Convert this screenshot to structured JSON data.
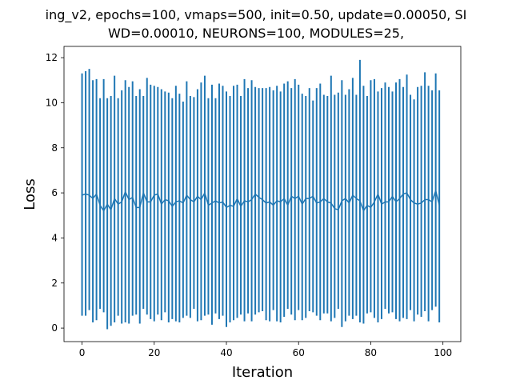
{
  "chart_data": {
    "type": "line",
    "title_lines": [
      "ing_v2, epochs=100, vmaps=500, init=0.50, update=0.00050, SI",
      "WD=0.00010, NEURONS=100, MODULES=25,"
    ],
    "xlabel": "Iteration",
    "ylabel": "Loss",
    "xlim": [
      -5,
      104.95
    ],
    "ylim": [
      -0.6,
      12.5
    ],
    "xticks": [
      0,
      20,
      40,
      60,
      80,
      100
    ],
    "yticks": [
      0,
      2,
      4,
      6,
      8,
      10,
      12
    ],
    "grid": false,
    "color": "#1f77b4",
    "series": [
      {
        "values": [
          5.9,
          5.95,
          5.9,
          5.75,
          5.95,
          5.45,
          5.2,
          5.5,
          5.25,
          5.75,
          5.5,
          5.6,
          6.05,
          5.7,
          5.8,
          5.35,
          5.35,
          6.0,
          5.6,
          5.6,
          5.9,
          5.95,
          5.5,
          5.7,
          5.65,
          5.4,
          5.6,
          5.65,
          5.55,
          5.9,
          5.7,
          5.6,
          5.85,
          5.7,
          6.0,
          5.45,
          5.55,
          5.65,
          5.55,
          5.6,
          5.35,
          5.45,
          5.4,
          5.75,
          5.4,
          5.65,
          5.6,
          5.7,
          5.95,
          5.8,
          5.7,
          5.55,
          5.6,
          5.45,
          5.65,
          5.6,
          5.75,
          5.45,
          5.85,
          5.75,
          5.85,
          5.5,
          5.75,
          5.75,
          5.85,
          5.55,
          5.6,
          5.75,
          5.6,
          5.55,
          5.3,
          5.25,
          5.65,
          5.75,
          5.55,
          5.9,
          5.75,
          5.65,
          5.2,
          5.45,
          5.35,
          5.6,
          5.95,
          5.5,
          5.6,
          5.6,
          5.85,
          5.6,
          5.75,
          5.95,
          6.0,
          5.7,
          5.55,
          5.5,
          5.55,
          5.7,
          5.7,
          5.6,
          6.1,
          5.45
        ],
        "err_low": [
          0.55,
          0.55,
          0.8,
          0.25,
          0.35,
          0.85,
          0.7,
          -0.05,
          0.1,
          0.25,
          0.55,
          0.2,
          0.25,
          0.2,
          0.55,
          0.6,
          0.2,
          0.85,
          0.6,
          0.4,
          0.3,
          0.6,
          0.35,
          0.7,
          0.25,
          0.4,
          0.3,
          0.25,
          0.45,
          0.55,
          0.45,
          0.85,
          0.3,
          0.35,
          0.55,
          0.6,
          0.15,
          0.65,
          0.4,
          0.55,
          0.05,
          0.25,
          0.35,
          0.45,
          0.6,
          0.3,
          0.65,
          0.3,
          0.6,
          0.7,
          0.75,
          0.35,
          0.3,
          0.8,
          0.3,
          0.25,
          0.5,
          0.85,
          0.6,
          0.35,
          0.8,
          0.35,
          0.45,
          0.75,
          0.7,
          0.55,
          0.35,
          0.65,
          0.65,
          0.3,
          0.45,
          0.85,
          0.05,
          0.3,
          0.55,
          0.4,
          0.55,
          0.25,
          0.2,
          0.65,
          0.7,
          0.45,
          0.25,
          0.4,
          0.85,
          0.65,
          0.7,
          0.4,
          0.3,
          0.45,
          0.4,
          0.8,
          0.3,
          0.6,
          0.5,
          0.75,
          0.3,
          0.8,
          0.95,
          0.25
        ],
        "err_high": [
          11.3,
          11.4,
          11.5,
          11.0,
          11.05,
          10.2,
          11.05,
          10.2,
          10.3,
          11.2,
          10.2,
          10.55,
          11.0,
          10.7,
          10.95,
          10.3,
          10.6,
          10.3,
          11.1,
          10.8,
          10.75,
          10.7,
          10.6,
          10.5,
          10.45,
          10.2,
          10.75,
          10.4,
          10.05,
          10.95,
          10.3,
          10.25,
          10.6,
          10.9,
          11.2,
          10.2,
          10.8,
          10.2,
          10.85,
          10.75,
          10.5,
          10.3,
          10.75,
          10.8,
          10.3,
          11.05,
          10.65,
          11.0,
          10.7,
          10.65,
          10.65,
          10.65,
          10.7,
          10.55,
          10.75,
          10.5,
          10.85,
          10.95,
          10.65,
          11.05,
          10.8,
          10.4,
          10.3,
          10.65,
          10.1,
          10.65,
          10.85,
          10.35,
          10.3,
          11.2,
          10.35,
          10.45,
          11.0,
          10.35,
          10.6,
          11.1,
          10.35,
          11.9,
          10.75,
          10.3,
          11.0,
          11.05,
          10.5,
          10.65,
          10.9,
          10.7,
          10.5,
          10.9,
          11.05,
          10.7,
          11.25,
          10.35,
          10.15,
          10.7,
          10.75,
          11.35,
          10.75,
          10.55,
          11.3,
          10.55
        ]
      }
    ]
  }
}
